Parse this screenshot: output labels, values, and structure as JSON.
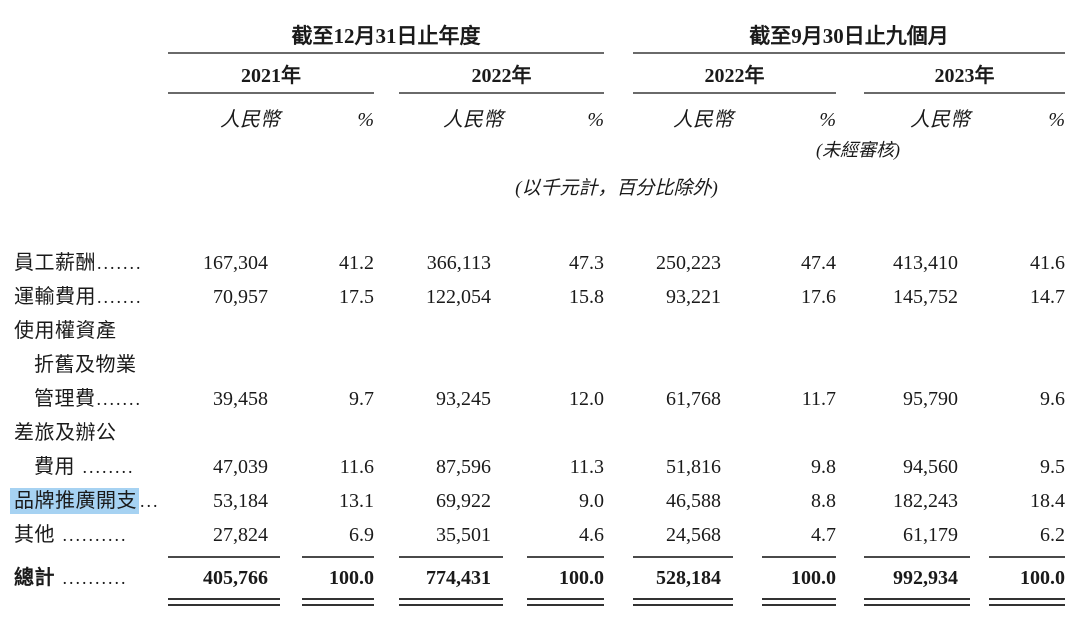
{
  "table": {
    "period_groups": [
      {
        "title": "截至12月31日止年度"
      },
      {
        "title": "截至9月30日止九個月"
      }
    ],
    "year_headers": [
      "2021年",
      "2022年",
      "2022年",
      "2023年"
    ],
    "column_subheaders": {
      "currency": "人民幣",
      "percent": "%"
    },
    "unaudited_note": "(未經審核)",
    "unit_note": "(以千元計，百分比除外)",
    "highlight_color": "#a6d2f2",
    "rows": [
      {
        "label": "員工薪酬",
        "dots": ".......",
        "indent": false,
        "highlight": false,
        "values": [
          "167,304",
          "41.2",
          "366,113",
          "47.3",
          "250,223",
          "47.4",
          "413,410",
          "41.6"
        ]
      },
      {
        "label": "運輸費用",
        "dots": ".......",
        "indent": false,
        "highlight": false,
        "values": [
          "70,957",
          "17.5",
          "122,054",
          "15.8",
          "93,221",
          "17.6",
          "145,752",
          "14.7"
        ]
      },
      {
        "label": "使用權資產",
        "dots": "",
        "indent": false,
        "highlight": false,
        "values": []
      },
      {
        "label": "折舊及物業",
        "dots": "",
        "indent": true,
        "highlight": false,
        "values": []
      },
      {
        "label": "管理費",
        "dots": ".......",
        "indent": true,
        "highlight": false,
        "values": [
          "39,458",
          "9.7",
          "93,245",
          "12.0",
          "61,768",
          "11.7",
          "95,790",
          "9.6"
        ]
      },
      {
        "label": "差旅及辦公",
        "dots": "",
        "indent": false,
        "highlight": false,
        "values": []
      },
      {
        "label": "費用",
        "dots": " ........",
        "indent": true,
        "highlight": false,
        "values": [
          "47,039",
          "11.6",
          "87,596",
          "11.3",
          "51,816",
          "9.8",
          "94,560",
          "9.5"
        ]
      },
      {
        "label": "品牌推廣開支",
        "dots": "...",
        "indent": false,
        "highlight": true,
        "values": [
          "53,184",
          "13.1",
          "69,922",
          "9.0",
          "46,588",
          "8.8",
          "182,243",
          "18.4"
        ]
      },
      {
        "label": "其他",
        "dots": " ..........",
        "indent": false,
        "highlight": false,
        "values": [
          "27,824",
          "6.9",
          "35,501",
          "4.6",
          "24,568",
          "4.7",
          "61,179",
          "6.2"
        ]
      }
    ],
    "total_row": {
      "label": "總計",
      "dots": " ..........",
      "values": [
        "405,766",
        "100.0",
        "774,431",
        "100.0",
        "528,184",
        "100.0",
        "992,934",
        "100.0"
      ]
    }
  }
}
